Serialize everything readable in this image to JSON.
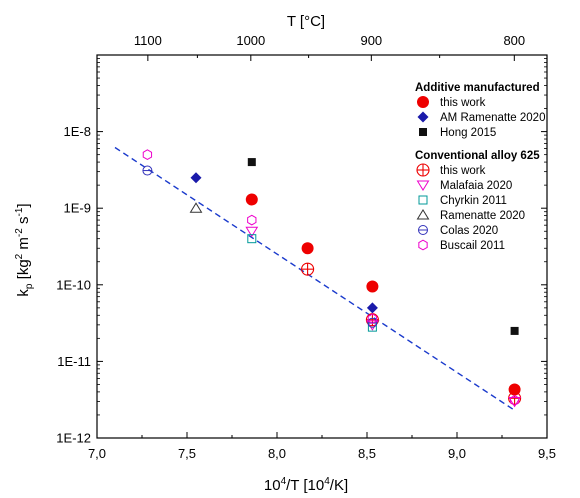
{
  "chart_data": {
    "type": "scatter",
    "x_scale": "linear",
    "y_scale": "log",
    "xlim": [
      7.0,
      9.5
    ],
    "ylim": [
      1e-12,
      1e-07
    ],
    "grid": false,
    "legend_position": "top-right",
    "xlabel_main": "10",
    "xlabel_sup": "4",
    "xlabel_rest": "/T [10",
    "xlabel_sup2": "4",
    "xlabel_end": "/K]",
    "ylabel_main": "k",
    "ylabel_sub": "p",
    "ylabel_mid": " [kg",
    "ylabel_sup1": "2",
    "ylabel_mid2": " m",
    "ylabel_sup2": "-2",
    "ylabel_mid3": " s",
    "ylabel_sup3": "-1",
    "ylabel_end": "]",
    "top_axis_label": "T [°C]",
    "x_ticks": [
      {
        "value": 7.0,
        "label": "7,0"
      },
      {
        "value": 7.5,
        "label": "7,5"
      },
      {
        "value": 8.0,
        "label": "8,0"
      },
      {
        "value": 8.5,
        "label": "8,5"
      },
      {
        "value": 9.0,
        "label": "9,0"
      },
      {
        "value": 9.5,
        "label": "9,5"
      }
    ],
    "y_ticks": [
      {
        "value": 1e-12,
        "label": "1E-12"
      },
      {
        "value": 1e-11,
        "label": "1E-11"
      },
      {
        "value": 1e-10,
        "label": "1E-10"
      },
      {
        "value": 1e-09,
        "label": "1E-9"
      },
      {
        "value": 1e-08,
        "label": "1E-8"
      }
    ],
    "top_ticks": [
      {
        "value": 1100,
        "label": "1100"
      },
      {
        "value": 1000,
        "label": "1000"
      },
      {
        "value": 900,
        "label": "900"
      },
      {
        "value": 800,
        "label": "800"
      }
    ],
    "legend_groups": [
      {
        "heading": "Additive manufactured",
        "series_indices": [
          0,
          1,
          2
        ]
      },
      {
        "heading": "Conventional alloy 625",
        "series_indices": [
          3,
          4,
          5,
          6,
          7,
          8
        ]
      }
    ],
    "series": [
      {
        "name": "this work",
        "marker": "filled-circle",
        "color": "#ee0000",
        "points": [
          [
            7.86,
            1.3e-09
          ],
          [
            8.17,
            3e-10
          ],
          [
            8.53,
            9.5e-11
          ],
          [
            9.32,
            4.3e-12
          ]
        ]
      },
      {
        "name": "AM Ramenatte 2020",
        "marker": "filled-diamond",
        "color": "#1a1aaa",
        "points": [
          [
            7.55,
            2.5e-09
          ],
          [
            8.53,
            5e-11
          ]
        ]
      },
      {
        "name": "Hong 2015",
        "marker": "filled-square",
        "color": "#111111",
        "points": [
          [
            7.86,
            4e-09
          ],
          [
            9.32,
            2.5e-11
          ]
        ]
      },
      {
        "name": "this work",
        "marker": "crossed-circle",
        "color": "#ee0000",
        "points": [
          [
            8.17,
            1.6e-10
          ],
          [
            8.53,
            3.5e-11
          ],
          [
            9.32,
            3.3e-12
          ]
        ]
      },
      {
        "name": "Malafaia 2020",
        "marker": "open-triangle-down",
        "color": "#ee00cc",
        "points": [
          [
            7.86,
            5e-10
          ],
          [
            8.53,
            3e-11
          ],
          [
            9.32,
            3e-12
          ]
        ]
      },
      {
        "name": "Chyrkin 2011",
        "marker": "open-square",
        "color": "#009999",
        "points": [
          [
            7.86,
            4e-10
          ],
          [
            8.53,
            2.8e-11
          ]
        ]
      },
      {
        "name": "Ramenatte 2020",
        "marker": "open-triangle-up",
        "color": "#333333",
        "points": [
          [
            7.55,
            1e-09
          ]
        ]
      },
      {
        "name": "Colas 2020",
        "marker": "open-circle-slash",
        "color": "#3333bb",
        "points": [
          [
            7.28,
            3.1e-09
          ],
          [
            8.53,
            3.2e-11
          ]
        ]
      },
      {
        "name": "Buscail 2011",
        "marker": "open-hexagon",
        "color": "#ee00cc",
        "points": [
          [
            7.28,
            5e-09
          ],
          [
            7.86,
            7e-10
          ],
          [
            8.53,
            3.6e-11
          ],
          [
            9.32,
            3.1e-12
          ]
        ]
      }
    ],
    "fit_line": {
      "style": "dashed",
      "color": "#1a3acc",
      "from": [
        7.1,
        6.2e-09
      ],
      "to": [
        9.32,
        2.3e-12
      ]
    }
  }
}
